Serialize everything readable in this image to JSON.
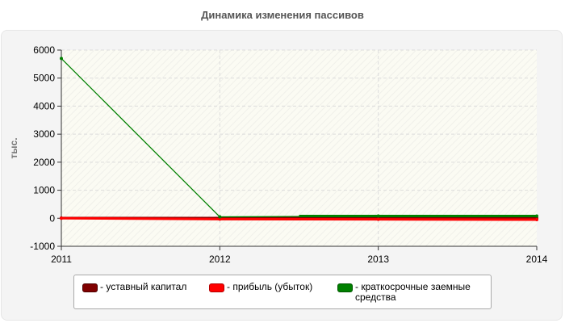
{
  "chart_data": {
    "type": "line",
    "title": "Динамика изменения пассивов",
    "ylabel": "тыс.",
    "xlabel": "",
    "x": [
      "2011",
      "2012",
      "2013",
      "2014"
    ],
    "ylim": [
      -1000,
      6000
    ],
    "yticks": [
      "-1000",
      "0",
      "1000",
      "2000",
      "3000",
      "4000",
      "5000",
      "6000"
    ],
    "grid": true,
    "legend_position": "bottom",
    "series": [
      {
        "name": "- уставный капитал",
        "color": "#800000",
        "values": [
          10,
          10,
          10,
          10
        ]
      },
      {
        "name": "- прибыль (убыток)",
        "color": "#ff0000",
        "values": [
          0,
          -30,
          -40,
          -50
        ]
      },
      {
        "name": "- краткосрочные заемные средства",
        "color": "#008000",
        "values": [
          5700,
          50,
          80,
          80
        ]
      }
    ]
  }
}
